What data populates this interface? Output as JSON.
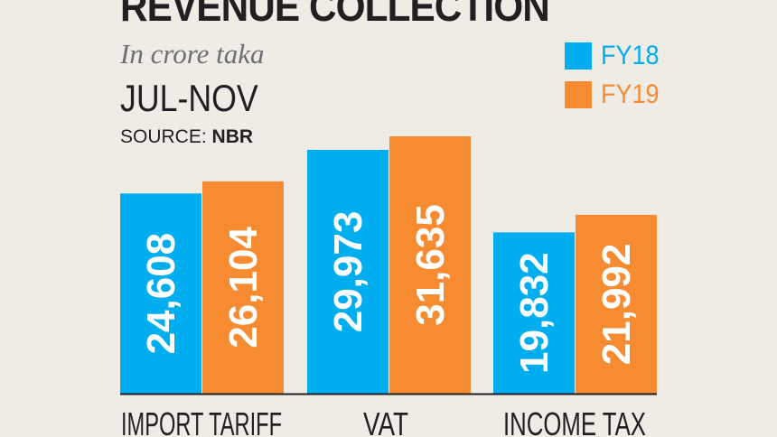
{
  "header": {
    "title": "REVENUE COLLECTION",
    "subtitle": "In crore taka",
    "period": "JUL-NOV",
    "source_label": "SOURCE:",
    "source_value": "NBR"
  },
  "colors": {
    "FY18": "#00aeef",
    "FY19": "#f68b32",
    "axis": "#231f20",
    "background": "#efece6"
  },
  "chart_data": {
    "type": "bar",
    "title": "REVENUE COLLECTION",
    "subtitle": "In crore taka",
    "categories": [
      "IMPORT TARIFF",
      "VAT",
      "INCOME TAX"
    ],
    "series": [
      {
        "name": "FY18",
        "values": [
          24608,
          29973,
          19832
        ],
        "labels": [
          "24,608",
          "29,973",
          "19,832"
        ]
      },
      {
        "name": "FY19",
        "values": [
          26104,
          31635,
          21992
        ],
        "labels": [
          "26,104",
          "31,635",
          "21,992"
        ]
      }
    ],
    "ylim": [
      0,
      32000
    ],
    "legend_position": "top-right",
    "grid": false,
    "data_labels": "vertical-inside-bar"
  }
}
